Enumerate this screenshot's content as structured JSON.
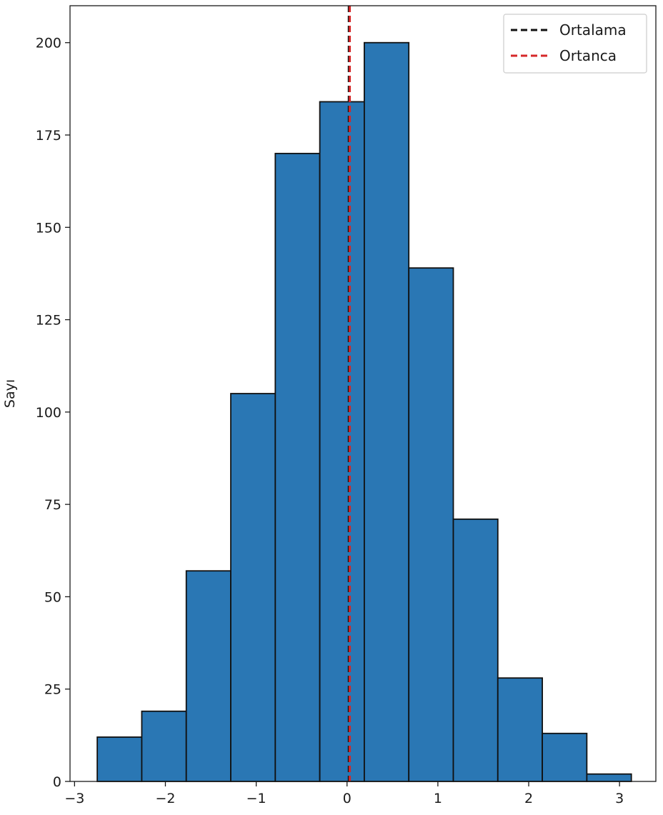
{
  "chart_data": {
    "type": "bar",
    "title": "",
    "xlabel": "",
    "ylabel": "Sayı",
    "bin_edges": [
      -2.75,
      -2.26,
      -1.77,
      -1.28,
      -0.79,
      -0.3,
      0.19,
      0.68,
      1.17,
      1.66,
      2.15,
      2.64,
      3.13
    ],
    "values": [
      12,
      19,
      57,
      105,
      170,
      184,
      200,
      139,
      71,
      28,
      13,
      2
    ],
    "xlim": [
      -3.05,
      3.4
    ],
    "ylim": [
      0,
      210
    ],
    "xticks": [
      -3,
      -2,
      -1,
      0,
      1,
      2,
      3
    ],
    "xtick_labels": [
      "−3",
      "−2",
      "−1",
      "0",
      "1",
      "2",
      "3"
    ],
    "yticks": [
      0,
      25,
      50,
      75,
      100,
      125,
      150,
      175,
      200
    ],
    "ytick_labels": [
      "0",
      "25",
      "50",
      "75",
      "100",
      "125",
      "150",
      "175",
      "200"
    ],
    "bar_color": "#2a77b4",
    "edge_color": "#111111",
    "lines": [
      {
        "name": "Ortalama",
        "x": 0.02,
        "color": "#111111",
        "style": "dashed"
      },
      {
        "name": "Ortanca",
        "x": 0.03,
        "color": "#d62728",
        "style": "dashed"
      }
    ],
    "legend": {
      "position": "top-right",
      "entries": [
        "Ortalama",
        "Ortanca"
      ]
    },
    "grid": false
  }
}
